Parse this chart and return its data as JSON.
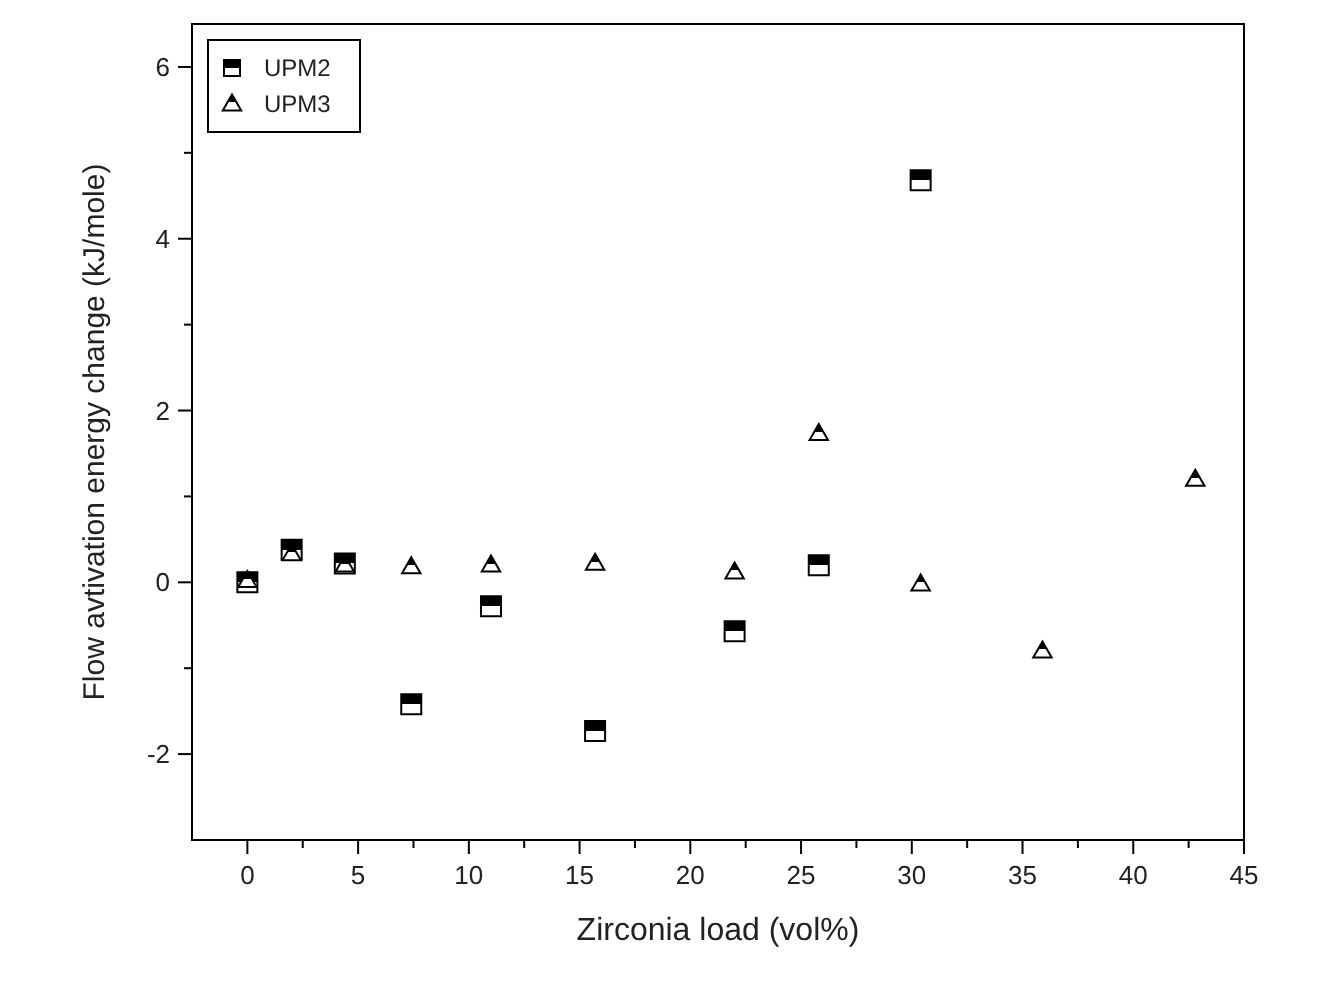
{
  "chart_data": {
    "type": "scatter",
    "xlabel": "Zirconia load (vol%)",
    "ylabel": "Flow avtivation energy change (kJ/mole)",
    "xlim": [
      -2.5,
      45
    ],
    "xticks": [
      0,
      {
        "value": 2.5,
        "label": null
      },
      5,
      {
        "value": 7.5,
        "label": null
      },
      10,
      {
        "value": 12.5,
        "label": null
      },
      15,
      {
        "value": 17.5,
        "label": null
      },
      20,
      {
        "value": 22.5,
        "label": null
      },
      25,
      {
        "value": 27.5,
        "label": null
      },
      30,
      {
        "value": 32.5,
        "label": null
      },
      35,
      {
        "value": 37.5,
        "label": null
      },
      40,
      {
        "value": 42.5,
        "label": null
      },
      45
    ],
    "ylim": [
      -3,
      6.5
    ],
    "yticks": [
      -2,
      {
        "value": -1,
        "label": null
      },
      0,
      {
        "value": 1,
        "label": null
      },
      2,
      {
        "value": 3,
        "label": null
      },
      4,
      {
        "value": 5,
        "label": null
      },
      6
    ],
    "grid": false,
    "legend": "top left",
    "series": [
      {
        "name": "UPM2",
        "color": "#000000",
        "marker": "square",
        "x": [
          0,
          2,
          4.4,
          7.4,
          11,
          15.7,
          22,
          25.8,
          30.4
        ],
        "values": [
          0.0,
          0.38,
          0.22,
          -1.42,
          -0.28,
          -1.73,
          -0.57,
          0.2,
          4.68
        ]
      },
      {
        "name": "UPM3",
        "color": "#000000",
        "marker": "triangle",
        "x": [
          0,
          2,
          4.4,
          7.4,
          11,
          15.7,
          22,
          25.8,
          30.4,
          35.9,
          42.8
        ],
        "values": [
          0.02,
          0.33,
          0.2,
          0.18,
          0.2,
          0.22,
          0.12,
          1.73,
          -0.02,
          -0.8,
          1.2
        ]
      }
    ]
  }
}
